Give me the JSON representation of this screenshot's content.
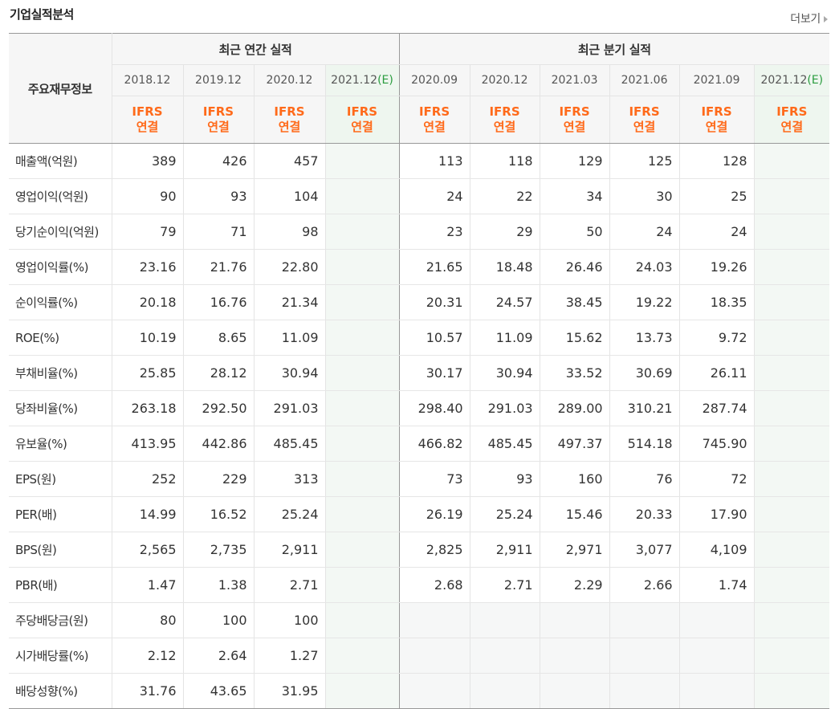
{
  "title": "기업실적분석",
  "more_label": "더보기",
  "row_head": "주요재무정보",
  "groups": {
    "annual": "최근 연간 실적",
    "quarterly": "최근 분기 실적"
  },
  "annual_periods": [
    "2018.12",
    "2019.12",
    "2020.12",
    "2021.12"
  ],
  "quarterly_periods": [
    "2020.09",
    "2020.12",
    "2021.03",
    "2021.06",
    "2021.09",
    "2021.12"
  ],
  "estimate_mark": "(E)",
  "ifrs_line1": "IFRS",
  "ifrs_line2": "연결",
  "rows": [
    {
      "label": "매출액(억원)",
      "annual": [
        "389",
        "426",
        "457",
        ""
      ],
      "quarterly": [
        "113",
        "118",
        "129",
        "125",
        "128",
        ""
      ]
    },
    {
      "label": "영업이익(억원)",
      "annual": [
        "90",
        "93",
        "104",
        ""
      ],
      "quarterly": [
        "24",
        "22",
        "34",
        "30",
        "25",
        ""
      ]
    },
    {
      "label": "당기순이익(억원)",
      "annual": [
        "79",
        "71",
        "98",
        ""
      ],
      "quarterly": [
        "23",
        "29",
        "50",
        "24",
        "24",
        ""
      ]
    },
    {
      "label": "영업이익률(%)",
      "annual": [
        "23.16",
        "21.76",
        "22.80",
        ""
      ],
      "quarterly": [
        "21.65",
        "18.48",
        "26.46",
        "24.03",
        "19.26",
        ""
      ]
    },
    {
      "label": "순이익률(%)",
      "annual": [
        "20.18",
        "16.76",
        "21.34",
        ""
      ],
      "quarterly": [
        "20.31",
        "24.57",
        "38.45",
        "19.22",
        "18.35",
        ""
      ]
    },
    {
      "label": "ROE(%)",
      "annual": [
        "10.19",
        "8.65",
        "11.09",
        ""
      ],
      "quarterly": [
        "10.57",
        "11.09",
        "15.62",
        "13.73",
        "9.72",
        ""
      ]
    },
    {
      "label": "부채비율(%)",
      "annual": [
        "25.85",
        "28.12",
        "30.94",
        ""
      ],
      "quarterly": [
        "30.17",
        "30.94",
        "33.52",
        "30.69",
        "26.11",
        ""
      ]
    },
    {
      "label": "당좌비율(%)",
      "annual": [
        "263.18",
        "292.50",
        "291.03",
        ""
      ],
      "quarterly": [
        "298.40",
        "291.03",
        "289.00",
        "310.21",
        "287.74",
        ""
      ]
    },
    {
      "label": "유보율(%)",
      "annual": [
        "413.95",
        "442.86",
        "485.45",
        ""
      ],
      "quarterly": [
        "466.82",
        "485.45",
        "497.37",
        "514.18",
        "745.90",
        ""
      ]
    },
    {
      "label": "EPS(원)",
      "annual": [
        "252",
        "229",
        "313",
        ""
      ],
      "quarterly": [
        "73",
        "93",
        "160",
        "76",
        "72",
        ""
      ]
    },
    {
      "label": "PER(배)",
      "annual": [
        "14.99",
        "16.52",
        "25.24",
        ""
      ],
      "quarterly": [
        "26.19",
        "25.24",
        "15.46",
        "20.33",
        "17.90",
        ""
      ]
    },
    {
      "label": "BPS(원)",
      "annual": [
        "2,565",
        "2,735",
        "2,911",
        ""
      ],
      "quarterly": [
        "2,825",
        "2,911",
        "2,971",
        "3,077",
        "4,109",
        ""
      ]
    },
    {
      "label": "PBR(배)",
      "annual": [
        "1.47",
        "1.38",
        "2.71",
        ""
      ],
      "quarterly": [
        "2.68",
        "2.71",
        "2.29",
        "2.66",
        "1.74",
        ""
      ]
    },
    {
      "label": "주당배당금(원)",
      "annual": [
        "80",
        "100",
        "100",
        ""
      ],
      "quarterly": [
        "",
        "",
        "",
        "",
        "",
        ""
      ]
    },
    {
      "label": "시가배당률(%)",
      "annual": [
        "2.12",
        "2.64",
        "1.27",
        ""
      ],
      "quarterly": [
        "",
        "",
        "",
        "",
        "",
        ""
      ]
    },
    {
      "label": "배당성향(%)",
      "annual": [
        "31.76",
        "43.65",
        "31.95",
        ""
      ],
      "quarterly": [
        "",
        "",
        "",
        "",
        "",
        ""
      ]
    }
  ],
  "colors": {
    "ifrs": "#ff6a1a",
    "estimate": "#2a9d3f",
    "estimate_bg": "#f3f8f4"
  }
}
